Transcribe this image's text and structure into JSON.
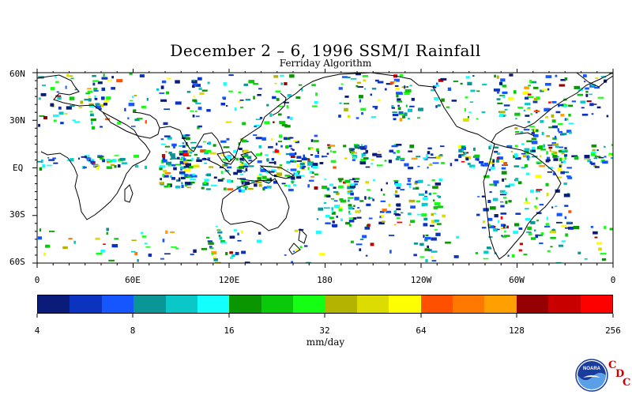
{
  "title": "December 2 – 6, 1996 SSM/I Rainfall",
  "subtitle": "Ferriday Algorithm",
  "lat_labels": [
    "60N",
    "30N",
    "EQ",
    "30S",
    "60S"
  ],
  "lon_labels": [
    "0",
    "60E",
    "120E",
    "180",
    "120W",
    "60W",
    "0"
  ],
  "colorbar": {
    "colors": [
      "#0a1b7a",
      "#0a33c0",
      "#1556ff",
      "#0a9696",
      "#0ac8c8",
      "#14ffff",
      "#0a9600",
      "#0ac80a",
      "#14ff14",
      "#b4b400",
      "#dcdc00",
      "#ffff00",
      "#ff5000",
      "#ff7800",
      "#ffa000",
      "#960000",
      "#c80000",
      "#ff0000"
    ],
    "tick_labels": [
      "4",
      "8",
      "16",
      "32",
      "64",
      "128",
      "256"
    ],
    "unit": "mm/day"
  },
  "logo": {
    "name": "NOARA",
    "letters": [
      "C",
      "D",
      "C"
    ]
  }
}
